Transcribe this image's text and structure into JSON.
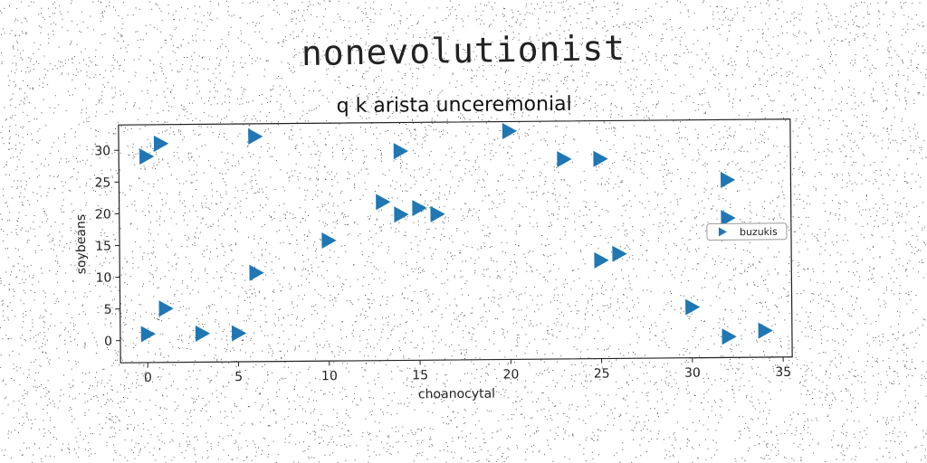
{
  "figure_title": "nonevolutionist",
  "chart_data": {
    "type": "scatter",
    "title": "q k arista unceremonial",
    "xlabel": "choanocytal",
    "ylabel": "soybeans",
    "xlim": [
      -1.5,
      35.5
    ],
    "ylim": [
      -3.5,
      34
    ],
    "xticks": [
      0,
      5,
      10,
      15,
      20,
      25,
      30,
      35
    ],
    "yticks": [
      0,
      5,
      10,
      15,
      20,
      25,
      30
    ],
    "grid": false,
    "legend": "right",
    "marker": "triangle-right",
    "series": [
      {
        "name": "buzukis",
        "color": "#1f77b4",
        "points": [
          [
            0,
            29
          ],
          [
            0.8,
            31
          ],
          [
            0,
            1
          ],
          [
            1,
            5
          ],
          [
            3,
            1
          ],
          [
            5,
            1
          ],
          [
            6,
            32
          ],
          [
            6,
            10.5
          ],
          [
            10,
            15.5
          ],
          [
            13,
            21.5
          ],
          [
            14,
            19.5
          ],
          [
            14,
            29.5
          ],
          [
            15,
            20.5
          ],
          [
            16,
            19.5
          ],
          [
            20,
            32.5
          ],
          [
            23,
            28
          ],
          [
            25,
            28
          ],
          [
            25,
            12
          ],
          [
            26,
            13
          ],
          [
            30,
            4.5
          ],
          [
            32,
            24.5
          ],
          [
            32,
            18.5
          ],
          [
            32,
            -0.2
          ],
          [
            34,
            0.7
          ]
        ]
      }
    ]
  }
}
